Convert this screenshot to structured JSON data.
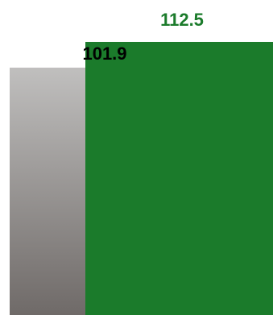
{
  "chart_data": {
    "type": "bar",
    "categories": [
      "",
      ""
    ],
    "values": [
      101.9,
      112.5
    ],
    "data_labels": [
      "101.9",
      "112.5"
    ],
    "ylim": [
      0,
      112.5
    ],
    "grid": false,
    "legend": "none",
    "colors": {
      "bar_1_gradient_top": "#c0bfbe",
      "bar_1_gradient_bottom": "#6f6a68",
      "bar_2": "#1b7b2b",
      "label_1": "#000000",
      "label_2": "#1b7b2b"
    }
  }
}
